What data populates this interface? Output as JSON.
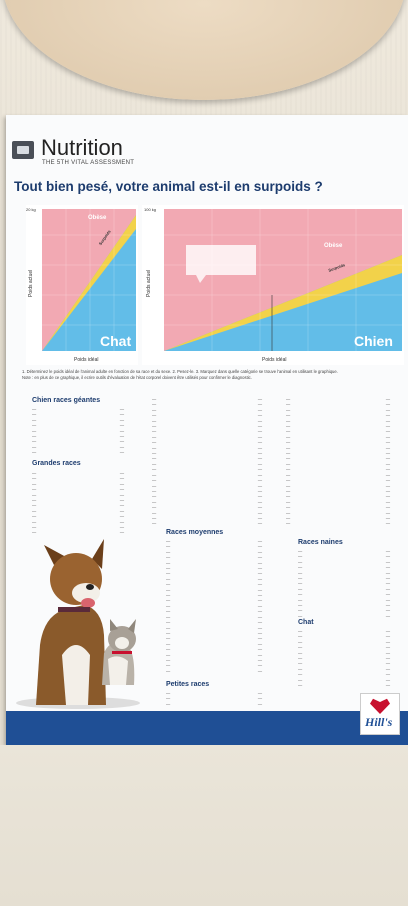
{
  "header": {
    "brand_title": "Nutrition",
    "brand_subtitle": "THE 5TH VITAL ASSESSMENT",
    "headline": "Tout bien pesé, votre animal est-il en surpoids ?"
  },
  "charts": {
    "cat": {
      "top_tick": "20 kg",
      "y_label": "Poids actuel",
      "x_label": "Poids idéal",
      "zone_obese": "Obèse",
      "zone_overweight": "Surpoids",
      "label": "Chat"
    },
    "dog": {
      "top_tick": "100 kg",
      "y_label": "Poids actuel",
      "x_label": "Poids idéal",
      "zone_obese": "Obèse",
      "zone_overweight": "Surpoids",
      "label": "Chien"
    }
  },
  "notes": {
    "line1": "1. Déterminez le poids idéal de l'animal adulte en fonction de sa race et du sexe.  2. Pesez-le.  3. Marquez dans quelle catégorie se trouve l'animal en utilisant le graphique.",
    "line2": "Note : en plus de ce graphique, il ecrire outils d'évaluation de l'état corporel doivent être utilisés pour confirmer le diagnostic."
  },
  "sections": {
    "giant_title": "Chien races géantes",
    "large_title": "Grandes races",
    "medium_title": "Races moyennes",
    "small_title": "Petites races",
    "toy_title": "Races naines",
    "cat_title": "Chat"
  },
  "colors": {
    "brand_blue": "#1f4f95",
    "headline_blue": "#1d3c6e",
    "zone_pink": "#f2a9b3",
    "zone_yellow": "#f2d24a",
    "zone_blue": "#62bde8",
    "hills_red": "#c8102e"
  },
  "brand_logo": "Hill's",
  "icons": {
    "logo": "scale-icon"
  }
}
